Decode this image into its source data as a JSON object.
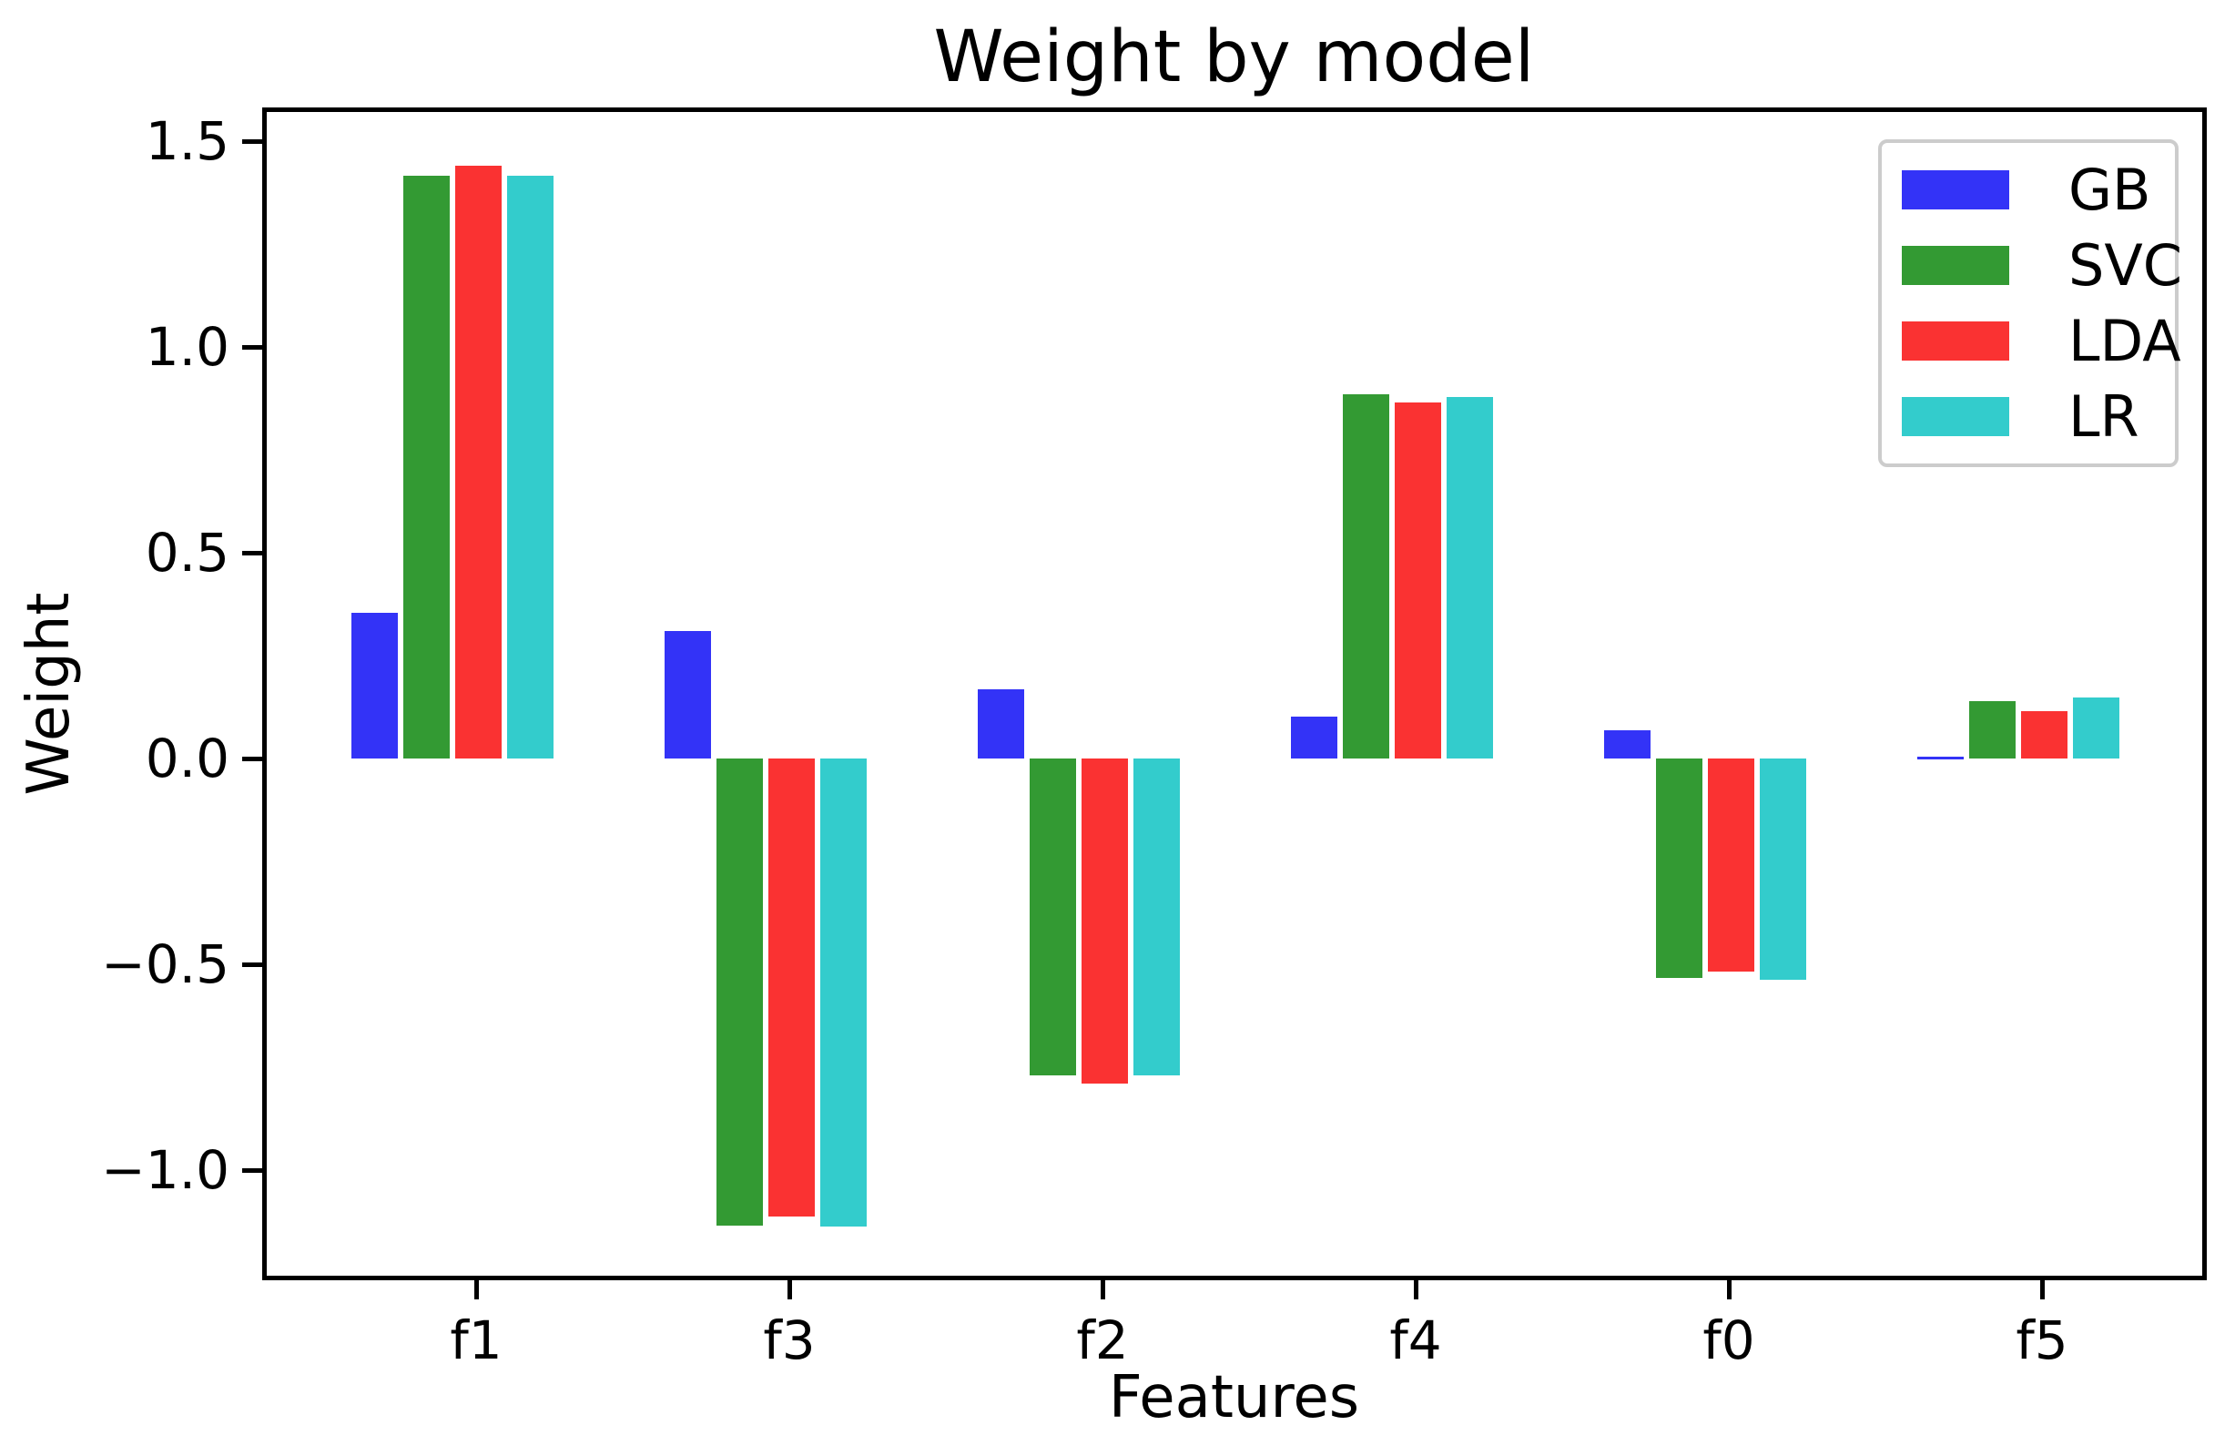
{
  "title": "Weight by model",
  "axis": {
    "xlabel": "Features",
    "ylabel": "Weight"
  },
  "chart_data": {
    "type": "bar",
    "title": "Weight by model",
    "xlabel": "Features",
    "ylabel": "Weight",
    "categories": [
      "f1",
      "f3",
      "f2",
      "f4",
      "f0",
      "f5"
    ],
    "series": [
      {
        "name": "GB",
        "color": "#3333F7",
        "values": [
          0.355,
          0.31,
          0.168,
          0.102,
          0.069,
          0.004
        ]
      },
      {
        "name": "SVC",
        "color": "#339A33",
        "values": [
          1.416,
          -1.135,
          -0.77,
          0.885,
          -0.533,
          0.139
        ]
      },
      {
        "name": "LDA",
        "color": "#FA3232",
        "values": [
          1.44,
          -1.113,
          -0.79,
          0.865,
          -0.518,
          0.115
        ]
      },
      {
        "name": "LR",
        "color": "#33CCCC",
        "values": [
          1.416,
          -1.137,
          -0.77,
          0.878,
          -0.538,
          0.148
        ]
      }
    ],
    "ylim": [
      -1.27,
      1.57
    ],
    "yticks": {
      "values": [
        1.5,
        1.0,
        0.5,
        0.0,
        -0.5,
        -1.0
      ],
      "labels": [
        "1.5",
        "1.0",
        "0.5",
        "0.0",
        "−0.5",
        "−1.0"
      ]
    },
    "grid": false,
    "legend_position": "upper right",
    "frame_color": "#000000",
    "background_color": "#ffffff"
  }
}
